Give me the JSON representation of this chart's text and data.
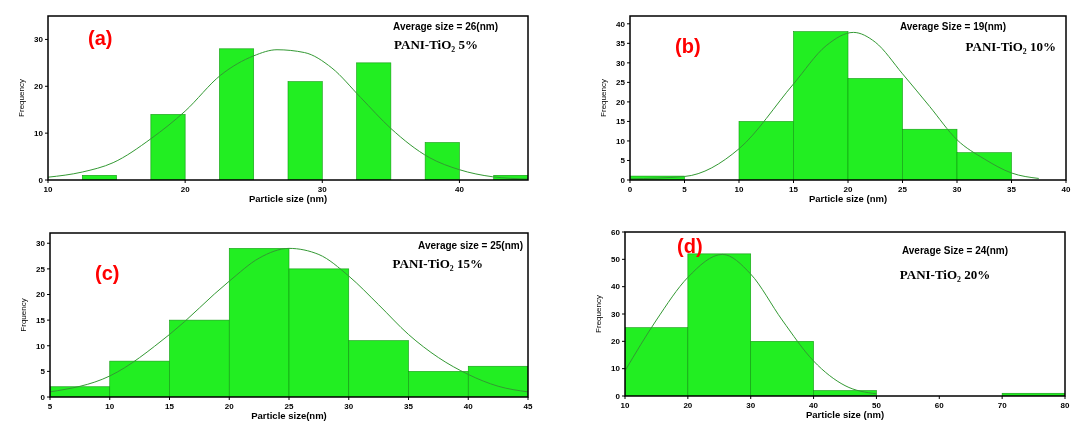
{
  "chart_data": [
    {
      "type": "histogram",
      "xlabel": "Particle size (nm)",
      "ylabel": "Frequency",
      "annotations": [
        "(a)",
        "Average size = 26(nm)",
        "PANI-TiO₂ 5%"
      ],
      "bins": [
        12.5,
        15,
        17.5,
        20,
        22.5,
        25,
        27.5,
        30,
        32.5,
        35,
        37.5,
        40,
        42.5,
        45
      ],
      "xlim": [
        10,
        45
      ],
      "ylim": [
        0,
        35
      ],
      "xticks": [
        10,
        20,
        30,
        40
      ],
      "yticks": [
        0,
        10,
        20,
        30
      ],
      "series": [
        {
          "color": "#22ee22",
          "values": [
            1,
            0,
            14,
            0,
            28,
            0,
            21,
            0,
            25,
            0,
            8,
            0,
            1
          ]
        },
        {
          "type": "line",
          "color": "#339933",
          "x": [
            10,
            12.5,
            14.75,
            17.5,
            20,
            22.6,
            25,
            26.7,
            28.7,
            30.7,
            32.8,
            35,
            37.8,
            40,
            42.4,
            45
          ],
          "values": [
            0.6,
            1.7,
            3.7,
            8.8,
            14.7,
            22.4,
            26.5,
            27.8,
            27.2,
            23.9,
            17.6,
            11,
            4.8,
            2.2,
            0.7,
            0.2
          ]
        }
      ]
    },
    {
      "type": "histogram",
      "xlabel": "Particle size (nm)",
      "ylabel": "Frequency",
      "annotations": [
        "(b)",
        "Average Size = 19(nm)",
        "PANI-TiO₂ 10%"
      ],
      "bins": [
        0,
        5,
        10,
        15,
        20,
        25,
        30,
        35
      ],
      "xlim": [
        0,
        40
      ],
      "ylim": [
        0,
        42
      ],
      "xticks": [
        0,
        5,
        10,
        15,
        20,
        25,
        30,
        35,
        40
      ],
      "yticks": [
        0,
        5,
        10,
        15,
        20,
        25,
        30,
        35,
        40
      ],
      "series": [
        {
          "color": "#22ee22",
          "values": [
            1,
            0,
            15,
            38,
            26,
            13,
            7
          ]
        },
        {
          "type": "line",
          "color": "#339933",
          "x": [
            0,
            5,
            10,
            15,
            18,
            20.5,
            22.5,
            25,
            27.5,
            30,
            32.5,
            35,
            37.5
          ],
          "values": [
            0.3,
            0.9,
            8,
            24.6,
            34.4,
            37.8,
            35.3,
            27.2,
            18.8,
            10.3,
            5.4,
            1.8,
            0.4
          ]
        }
      ]
    },
    {
      "type": "histogram",
      "xlabel": "Particle size(nm)",
      "ylabel": "Frquency",
      "annotations": [
        "(c)",
        "Average size = 25(nm)",
        "PANI-TiO₂ 15%"
      ],
      "bins": [
        5,
        10,
        15,
        20,
        25,
        30,
        35,
        40,
        45
      ],
      "xlim": [
        5,
        45
      ],
      "ylim": [
        0,
        32
      ],
      "xticks": [
        5,
        10,
        15,
        20,
        25,
        30,
        35,
        40,
        45
      ],
      "yticks": [
        0,
        5,
        10,
        15,
        20,
        25,
        30
      ],
      "series": [
        {
          "color": "#22ee22",
          "values": [
            2,
            7,
            15,
            29,
            25,
            11,
            5,
            6
          ]
        },
        {
          "type": "line",
          "color": "#339933",
          "x": [
            5,
            10,
            15,
            20,
            22.5,
            25,
            27.5,
            30,
            32.5,
            35,
            37.5,
            40,
            42.5,
            45
          ],
          "values": [
            1,
            4.1,
            12.2,
            22.6,
            27.1,
            29,
            27.8,
            23.6,
            18,
            12.2,
            7.7,
            4.4,
            2.1,
            1
          ]
        }
      ]
    },
    {
      "type": "histogram",
      "xlabel": "Particle size (nm)",
      "ylabel": "Frequency",
      "annotations": [
        "(d)",
        "Average Size = 24(nm)",
        "PANI-TiO₂ 20%"
      ],
      "bins": [
        10,
        20,
        30,
        40,
        50,
        60,
        70,
        80
      ],
      "xlim": [
        10,
        80
      ],
      "ylim": [
        0,
        60
      ],
      "xticks": [
        10,
        20,
        30,
        40,
        50,
        60,
        70,
        80
      ],
      "yticks": [
        0,
        10,
        20,
        30,
        40,
        50,
        60
      ],
      "series": [
        {
          "color": "#22ee22",
          "values": [
            25,
            52,
            20,
            2,
            0,
            0,
            1
          ]
        },
        {
          "type": "line",
          "color": "#339933",
          "x": [
            10,
            15,
            20,
            25.5,
            30,
            35,
            40,
            45,
            50
          ],
          "values": [
            9.2,
            27.8,
            43.4,
            51.8,
            44.6,
            27.8,
            12.8,
            3.8,
            0.8
          ]
        }
      ]
    }
  ]
}
